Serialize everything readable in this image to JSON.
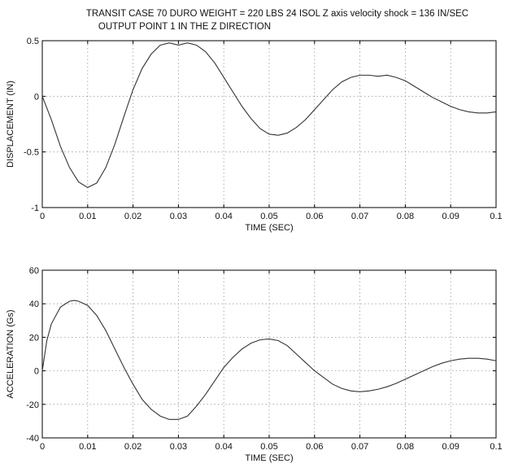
{
  "title_lines": [
    "TRANSIT CASE   70 DURO    WEIGHT = 220 LBS   24  ISOL   Z axis velocity shock = 136 IN/SEC",
    "OUTPUT POINT 1 IN THE Z DIRECTION"
  ],
  "chart_data": [
    {
      "type": "line",
      "xlabel": "TIME (SEC)",
      "ylabel": "DISPLACEMENT (IN)",
      "xlim": [
        0,
        0.1
      ],
      "ylim": [
        -1,
        0.5
      ],
      "grid": true,
      "x_ticks": [
        0,
        0.01,
        0.02,
        0.03,
        0.04,
        0.05,
        0.06,
        0.07,
        0.08,
        0.09,
        0.1
      ],
      "x_tick_labels": [
        "0",
        "0.01",
        "0.02",
        "0.03",
        "0.04",
        "0.05",
        "0.06",
        "0.07",
        "0.08",
        "0.09",
        "0.1"
      ],
      "y_ticks": [
        -1,
        -0.5,
        0,
        0.5
      ],
      "y_tick_labels": [
        "-1",
        "-0.5",
        "0",
        "0.5"
      ],
      "series": [
        {
          "x": [
            0,
            0.002,
            0.004,
            0.006,
            0.008,
            0.01,
            0.012,
            0.014,
            0.016,
            0.018,
            0.02,
            0.022,
            0.024,
            0.026,
            0.028,
            0.03,
            0.032,
            0.034,
            0.036,
            0.038,
            0.04,
            0.042,
            0.044,
            0.046,
            0.048,
            0.05,
            0.052,
            0.054,
            0.056,
            0.058,
            0.06,
            0.062,
            0.064,
            0.066,
            0.068,
            0.07,
            0.072,
            0.074,
            0.076,
            0.078,
            0.08,
            0.082,
            0.084,
            0.086,
            0.088,
            0.09,
            0.092,
            0.094,
            0.096,
            0.098,
            0.1
          ],
          "y": [
            0.0,
            -0.21,
            -0.45,
            -0.64,
            -0.77,
            -0.82,
            -0.78,
            -0.64,
            -0.43,
            -0.18,
            0.06,
            0.25,
            0.38,
            0.46,
            0.48,
            0.46,
            0.48,
            0.46,
            0.4,
            0.3,
            0.17,
            0.04,
            -0.09,
            -0.2,
            -0.29,
            -0.34,
            -0.35,
            -0.33,
            -0.28,
            -0.21,
            -0.12,
            -0.03,
            0.06,
            0.13,
            0.17,
            0.19,
            0.19,
            0.18,
            0.19,
            0.17,
            0.14,
            0.09,
            0.04,
            -0.01,
            -0.05,
            -0.09,
            -0.12,
            -0.14,
            -0.15,
            -0.15,
            -0.14
          ]
        }
      ]
    },
    {
      "type": "line",
      "xlabel": "TIME (SEC)",
      "ylabel": "ACCELERATION (Gs)",
      "xlim": [
        0,
        0.1
      ],
      "ylim": [
        -40,
        60
      ],
      "grid": true,
      "x_ticks": [
        0,
        0.01,
        0.02,
        0.03,
        0.04,
        0.05,
        0.06,
        0.07,
        0.08,
        0.09,
        0.1
      ],
      "x_tick_labels": [
        "0",
        "0.01",
        "0.02",
        "0.03",
        "0.04",
        "0.05",
        "0.06",
        "0.07",
        "0.08",
        "0.09",
        "0.1"
      ],
      "y_ticks": [
        -40,
        -20,
        0,
        20,
        40,
        60
      ],
      "y_tick_labels": [
        "-40",
        "-20",
        "0",
        "20",
        "40",
        "60"
      ],
      "series": [
        {
          "x": [
            0,
            0.001,
            0.002,
            0.004,
            0.006,
            0.007,
            0.008,
            0.01,
            0.012,
            0.014,
            0.016,
            0.018,
            0.02,
            0.022,
            0.024,
            0.026,
            0.028,
            0.03,
            0.032,
            0.034,
            0.036,
            0.038,
            0.04,
            0.042,
            0.044,
            0.046,
            0.048,
            0.05,
            0.052,
            0.054,
            0.056,
            0.058,
            0.06,
            0.062,
            0.064,
            0.066,
            0.068,
            0.07,
            0.072,
            0.074,
            0.076,
            0.078,
            0.08,
            0.082,
            0.084,
            0.086,
            0.088,
            0.09,
            0.092,
            0.094,
            0.096,
            0.098,
            0.1
          ],
          "y": [
            0,
            18,
            28,
            38,
            41.5,
            42,
            41.5,
            39,
            33,
            24,
            13,
            2,
            -8,
            -17,
            -23,
            -27,
            -29,
            -29,
            -27,
            -21,
            -14,
            -6,
            2,
            8,
            13,
            16.5,
            18.5,
            19,
            18,
            15,
            10,
            5,
            0,
            -4,
            -8,
            -10.5,
            -12,
            -12.5,
            -12,
            -11,
            -9.5,
            -7.5,
            -5,
            -2.5,
            0,
            2.5,
            4.5,
            6,
            7,
            7.5,
            7.5,
            7,
            6
          ]
        }
      ]
    }
  ]
}
